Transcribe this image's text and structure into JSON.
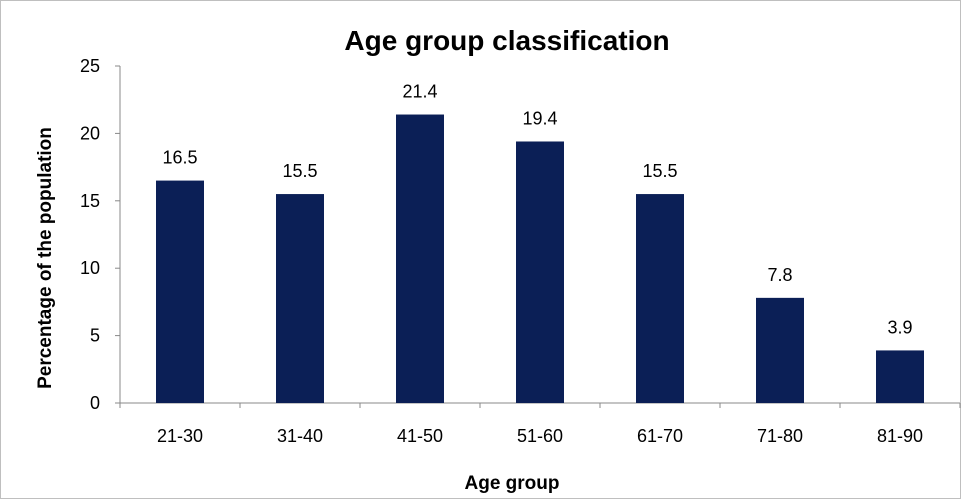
{
  "chart_data": {
    "type": "bar",
    "title": "Age group classification",
    "xlabel": "Age group",
    "ylabel": "Percentage of the population",
    "categories": [
      "21-30",
      "31-40",
      "41-50",
      "51-60",
      "61-70",
      "71-80",
      "81-90"
    ],
    "values": [
      16.5,
      15.5,
      21.4,
      19.4,
      15.5,
      7.8,
      3.9
    ],
    "data_labels": [
      "16.5",
      "15.5",
      "21.4",
      "19.4",
      "15.5",
      "7.8",
      "3.9"
    ],
    "ylim": [
      0,
      25
    ],
    "yticks": [
      0,
      5,
      10,
      15,
      20,
      25
    ],
    "grid": false,
    "legend": "none",
    "bar_color": "#0b1f56"
  }
}
